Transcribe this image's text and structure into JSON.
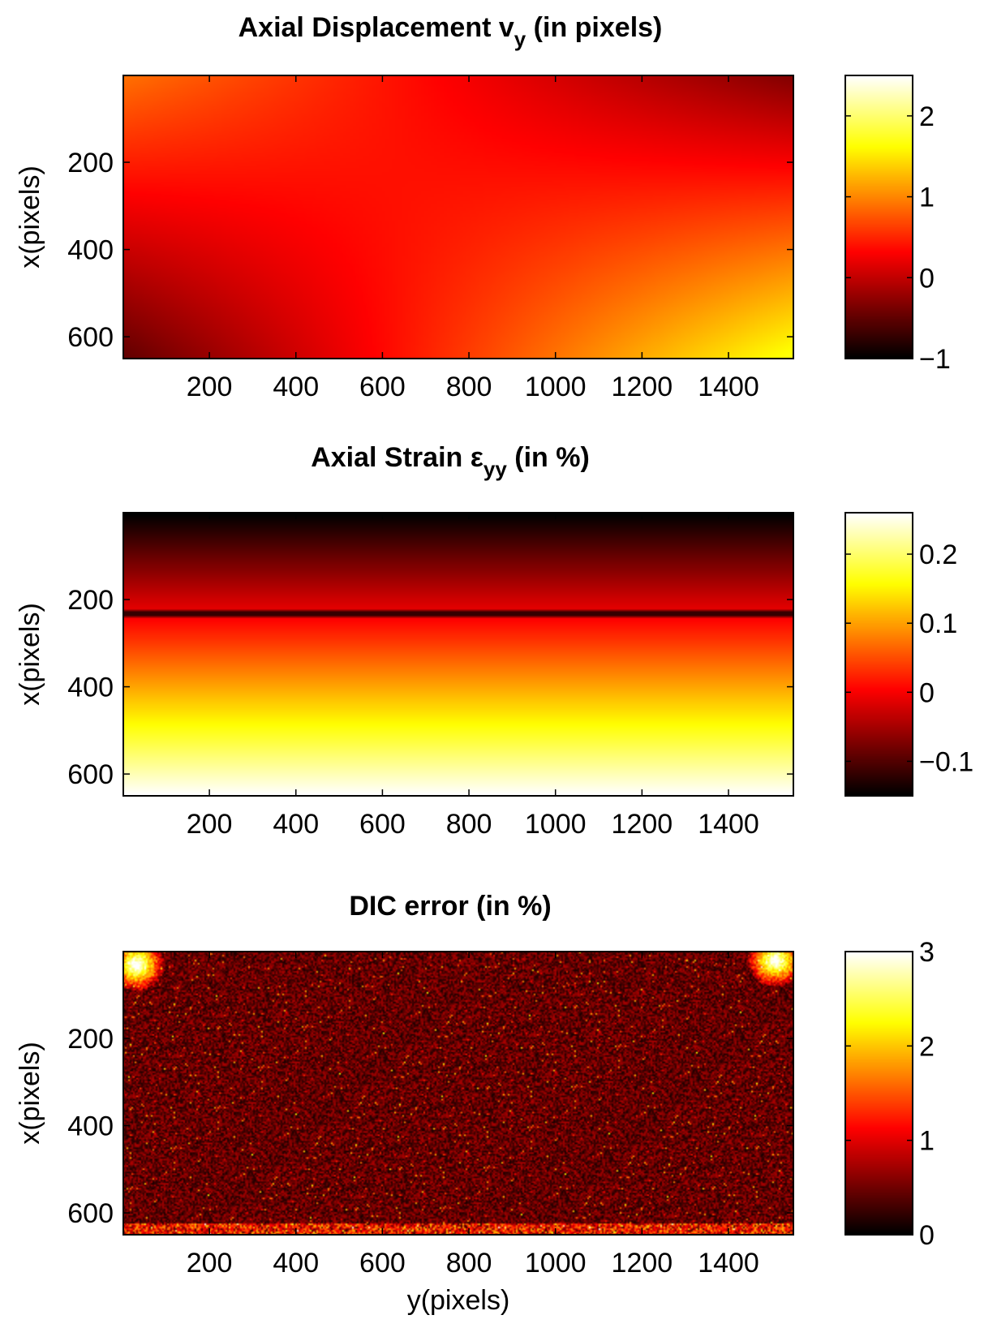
{
  "chart_data": [
    {
      "type": "heatmap",
      "title": "Axial Displacement v",
      "title_sub": "y",
      "title_suffix": " (in pixels)",
      "xlabel": "",
      "ylabel": "x(pixels)",
      "xlim": [
        1,
        1550
      ],
      "ylim": [
        1,
        650
      ],
      "xticks": [
        200,
        400,
        600,
        800,
        1000,
        1200,
        1400
      ],
      "xtick_labels": [
        "200",
        "400",
        "600",
        "800",
        "1000",
        "1200",
        "1400"
      ],
      "yticks": [
        200,
        400,
        600
      ],
      "ytick_labels": [
        "200",
        "400",
        "600"
      ],
      "colormap": "hot",
      "clim": [
        -1,
        2.5
      ],
      "colorbar_ticks": [
        2,
        1,
        0,
        -1
      ],
      "colorbar_tick_labels": [
        "2",
        "1",
        "0",
        "−1"
      ],
      "field": "saddle",
      "field_description_values": {
        "top_left": 1.3,
        "top_right": -1.0,
        "bottom_left": -1.0,
        "bottom_right": 2.5,
        "center": 0.5
      }
    },
    {
      "type": "heatmap",
      "title": "Axial Strain ε",
      "title_sub": "yy",
      "title_suffix": " (in %)",
      "xlabel": "",
      "ylabel": "x(pixels)",
      "xlim": [
        1,
        1550
      ],
      "ylim": [
        1,
        650
      ],
      "xticks": [
        200,
        400,
        600,
        800,
        1000,
        1200,
        1400
      ],
      "xtick_labels": [
        "200",
        "400",
        "600",
        "800",
        "1000",
        "1200",
        "1400"
      ],
      "yticks": [
        200,
        400,
        600
      ],
      "ytick_labels": [
        "200",
        "400",
        "600"
      ],
      "colormap": "hot",
      "clim": [
        -0.15,
        0.26
      ],
      "colorbar_ticks": [
        0.2,
        0.1,
        0,
        -0.1
      ],
      "colorbar_tick_labels": [
        "0.2",
        "0.1",
        "0",
        "−0.1"
      ],
      "field": "vertical_gradient",
      "gradient_values": {
        "top": -0.15,
        "bottom": 0.26
      },
      "dark_line_row": 232
    },
    {
      "type": "heatmap",
      "title": "DIC error",
      "title_sub": "",
      "title_suffix": " (in %)",
      "xlabel": "y(pixels)",
      "ylabel": "x(pixels)",
      "xlim": [
        1,
        1550
      ],
      "ylim": [
        1,
        650
      ],
      "xticks": [
        200,
        400,
        600,
        800,
        1000,
        1200,
        1400
      ],
      "xtick_labels": [
        "200",
        "400",
        "600",
        "800",
        "1000",
        "1200",
        "1400"
      ],
      "yticks": [
        200,
        400,
        600
      ],
      "ytick_labels": [
        "200",
        "400",
        "600"
      ],
      "colormap": "hot",
      "clim": [
        0,
        3
      ],
      "colorbar_ticks": [
        3,
        2,
        1,
        0
      ],
      "colorbar_tick_labels": [
        "3",
        "2",
        "1",
        "0"
      ],
      "field": "noise",
      "noise_level_typical": 0.55,
      "hotspots": [
        {
          "x": 30,
          "y": 30,
          "value": 3.0
        },
        {
          "x": 1510,
          "y": 20,
          "value": 3.0
        }
      ]
    }
  ]
}
